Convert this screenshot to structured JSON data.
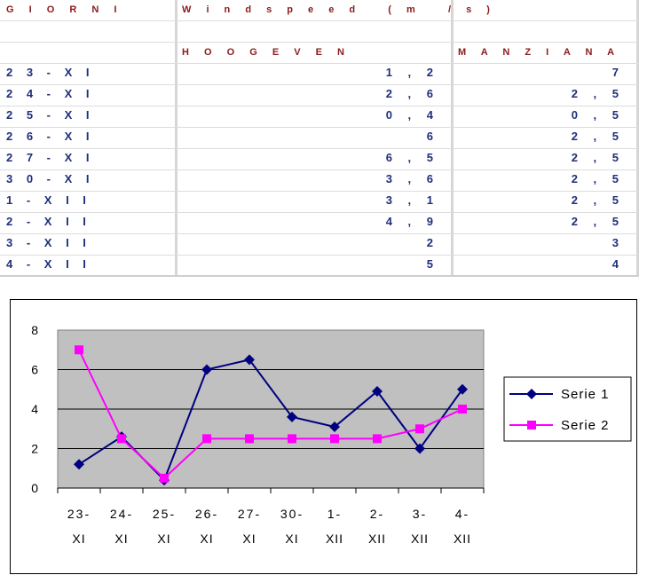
{
  "table": {
    "headers": {
      "giorni": "G I O R N I",
      "windspeed": "W i n d s p e e d   ( m   / s )",
      "hoogeven": "H O O G E V E N",
      "manziana": "M A N Z I A N A"
    },
    "rows": [
      {
        "day": "2 3 - X I",
        "hoogeven": "1 , 2",
        "manziana": "7"
      },
      {
        "day": "2 4 - X I",
        "hoogeven": "2 , 6",
        "manziana": "2 , 5"
      },
      {
        "day": "2 5 - X I",
        "hoogeven": "0 , 4",
        "manziana": "0 , 5"
      },
      {
        "day": "2 6 - X I",
        "hoogeven": "6",
        "manziana": "2 , 5"
      },
      {
        "day": "2 7 - X I",
        "hoogeven": "6 , 5",
        "manziana": "2 , 5"
      },
      {
        "day": "3 0 - X I",
        "hoogeven": "3 , 6",
        "manziana": "2 , 5"
      },
      {
        "day": "1 - X I I",
        "hoogeven": "3 , 1",
        "manziana": "2 , 5"
      },
      {
        "day": "2 - X I I",
        "hoogeven": "4 , 9",
        "manziana": "2 , 5"
      },
      {
        "day": "3 - X I I",
        "hoogeven": "2",
        "manziana": "3"
      },
      {
        "day": "4 - X I I",
        "hoogeven": "5",
        "manziana": "4"
      }
    ]
  },
  "chart_data": {
    "type": "line",
    "categories": [
      [
        "23-",
        "XI"
      ],
      [
        "24-",
        "XI"
      ],
      [
        "25-",
        "XI"
      ],
      [
        "26-",
        "XI"
      ],
      [
        "27-",
        "XI"
      ],
      [
        "30-",
        "XI"
      ],
      [
        "1-",
        "XII"
      ],
      [
        "2-",
        "XII"
      ],
      [
        "3-",
        "XII"
      ],
      [
        "4-",
        "XII"
      ]
    ],
    "series": [
      {
        "name": "Serie 1",
        "values": [
          1.2,
          2.6,
          0.4,
          6,
          6.5,
          3.6,
          3.1,
          4.9,
          2,
          5
        ],
        "color": "#000080",
        "marker": "diamond"
      },
      {
        "name": "Serie 2",
        "values": [
          7,
          2.5,
          0.5,
          2.5,
          2.5,
          2.5,
          2.5,
          2.5,
          3,
          4
        ],
        "color": "#ff00ff",
        "marker": "square"
      }
    ],
    "yticks": [
      "0",
      "2",
      "4",
      "6",
      "8"
    ],
    "ylim": [
      0,
      8
    ],
    "grid": true,
    "legend": "right",
    "plot_background": "#c0c0c0"
  }
}
